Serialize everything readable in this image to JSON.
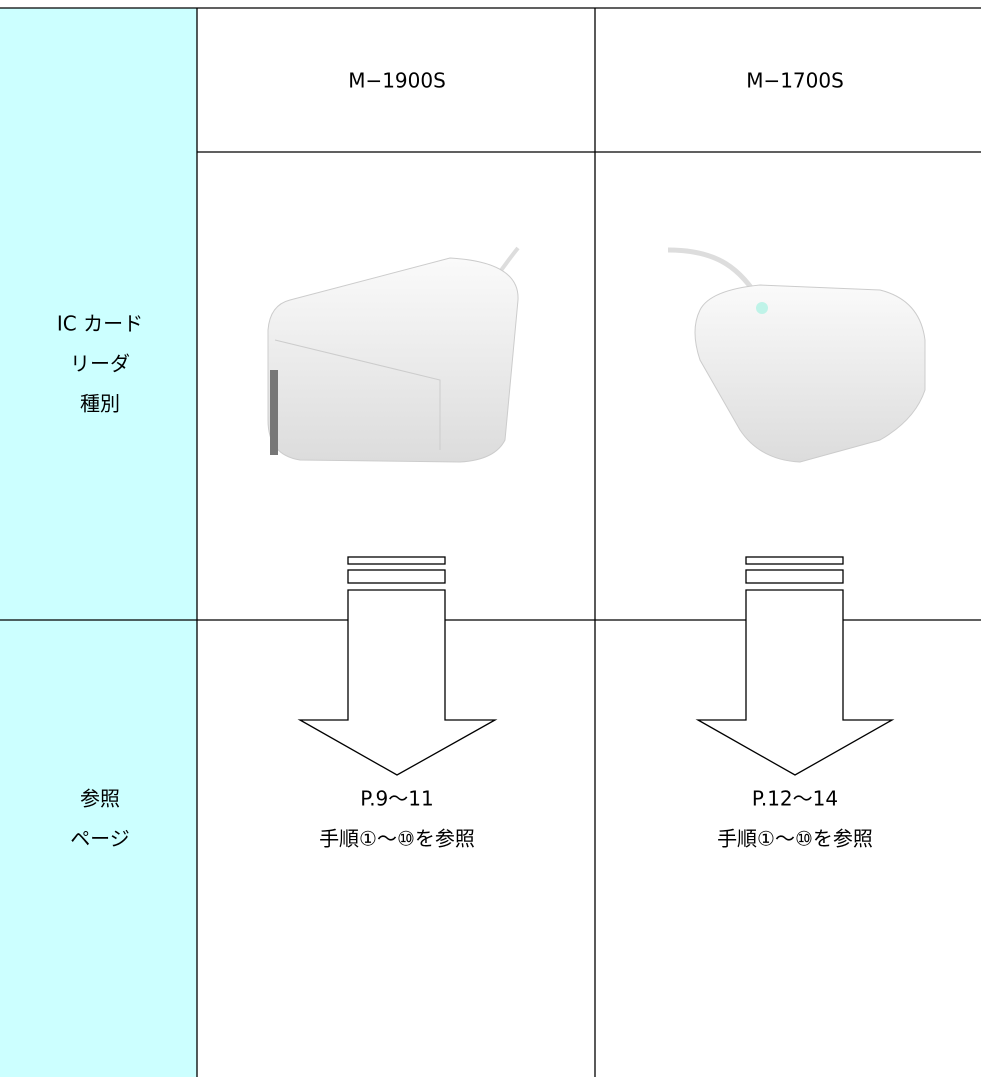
{
  "table": {
    "row_headers": [
      [
        "IC カード",
        "リーダ",
        "種別"
      ],
      [
        "参照",
        "ページ"
      ]
    ],
    "columns": [
      {
        "model": "M−1900S",
        "reference": [
          "P.9〜11",
          "手順①〜⑩を参照"
        ]
      },
      {
        "model": "M−1700S",
        "reference": [
          "P.12〜14",
          "手順①〜⑩を参照"
        ]
      }
    ]
  }
}
